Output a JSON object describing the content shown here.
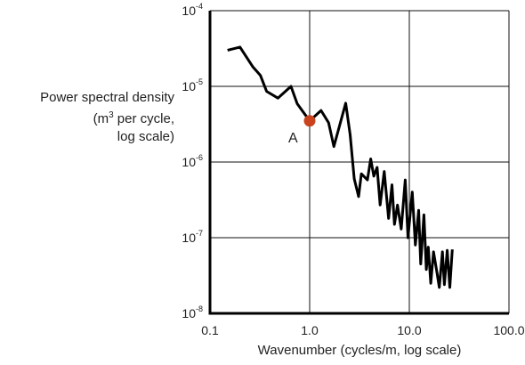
{
  "chart_data": {
    "type": "line",
    "xscale": "log",
    "yscale": "log",
    "xlim": [
      0.1,
      100
    ],
    "ylim": [
      1e-08,
      0.0001
    ],
    "grid": true,
    "xlabel": "Wavenumber (cycles/m, log scale)",
    "ylabel_lines": [
      "Power spectral density",
      "(m",
      "3",
      " per cycle,",
      "log scale)"
    ],
    "x_ticks": [
      {
        "value": 0.1,
        "label": "0.1"
      },
      {
        "value": 1,
        "label": "1.0"
      },
      {
        "value": 10,
        "label": "10.0"
      },
      {
        "value": 100,
        "label": "100.0"
      }
    ],
    "y_ticks": [
      {
        "value": 1e-08,
        "base": "10",
        "exp": "-8"
      },
      {
        "value": 1e-07,
        "base": "10",
        "exp": "-7"
      },
      {
        "value": 1e-06,
        "base": "10",
        "exp": "-6"
      },
      {
        "value": 1e-05,
        "base": "10",
        "exp": "-5"
      },
      {
        "value": 0.0001,
        "base": "10",
        "exp": "-4"
      }
    ],
    "series": [
      {
        "color": "#000000",
        "x": [
          0.15,
          0.2,
          0.27,
          0.32,
          0.37,
          0.48,
          0.65,
          0.75,
          1.0,
          1.3,
          1.55,
          1.75,
          2.3,
          2.55,
          2.8,
          3.1,
          3.3,
          3.8,
          4.1,
          4.4,
          4.75,
          5.1,
          5.6,
          6.2,
          6.7,
          7.1,
          7.6,
          8.3,
          9.1,
          9.7,
          10.7,
          11.5,
          12.4,
          13.0,
          14.0,
          14.8,
          15.5,
          16.4,
          17.5,
          18.9,
          20.0,
          21.5,
          22.5,
          24.0,
          25.5,
          27.0
        ],
        "y": [
          3e-05,
          3.3e-05,
          1.8e-05,
          1.4e-05,
          8.6e-06,
          7e-06,
          1e-05,
          5.9e-06,
          3.5e-06,
          4.8e-06,
          3.3e-06,
          1.6e-06,
          6e-06,
          2.3e-06,
          6e-07,
          3.5e-07,
          7e-07,
          5.8e-07,
          1.1e-06,
          6.5e-07,
          8.5e-07,
          2.7e-07,
          7.5e-07,
          1.8e-07,
          5e-07,
          1.5e-07,
          2.7e-07,
          1.3e-07,
          5.8e-07,
          1e-07,
          4e-07,
          8e-08,
          2.3e-07,
          4.5e-08,
          2e-07,
          3.8e-08,
          7.5e-08,
          2.5e-08,
          6.5e-08,
          3.5e-08,
          2.2e-08,
          6.5e-08,
          2.4e-08,
          6.8e-08,
          2.2e-08,
          7e-08
        ]
      }
    ],
    "point": {
      "x": 1.0,
      "y": 3.5e-06,
      "color": "#c8431e",
      "label": "A"
    }
  }
}
